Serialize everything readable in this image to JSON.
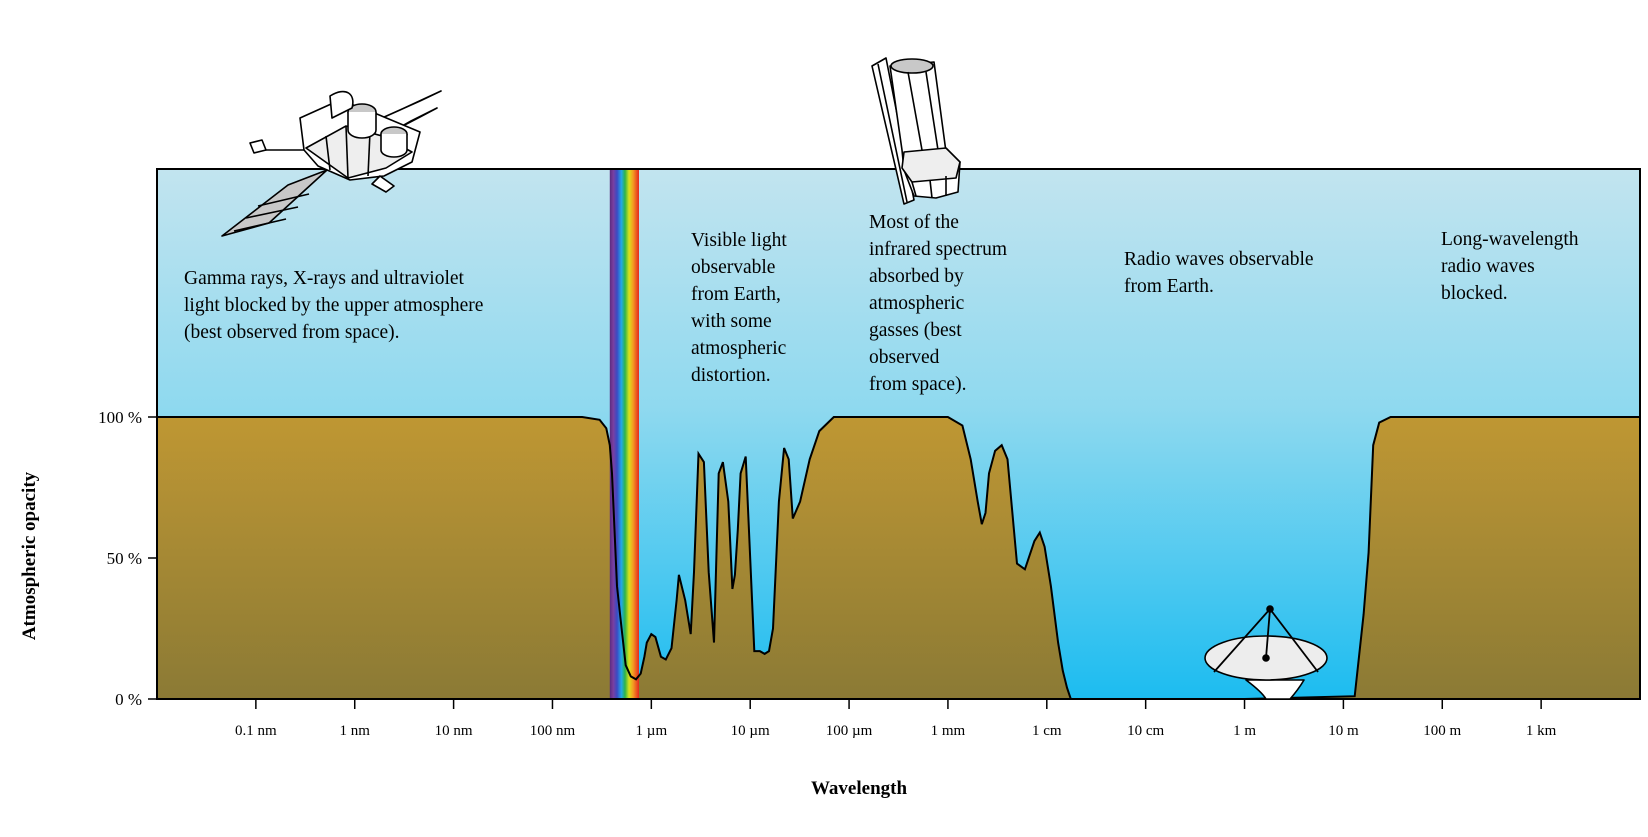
{
  "chart_data": {
    "type": "area",
    "title": "",
    "xlabel": "Wavelength",
    "ylabel": "Atmospheric opacity",
    "xscale": "log",
    "xlim": [
      "0.01 nm",
      "10 km"
    ],
    "ylim": [
      0,
      100
    ],
    "grid": false,
    "y_ticks": [
      {
        "value": 0,
        "label": "0 %"
      },
      {
        "value": 50,
        "label": "50 %"
      },
      {
        "value": 100,
        "label": "100 %"
      }
    ],
    "x_ticks": [
      {
        "value": 0.1,
        "label": "0.1 nm"
      },
      {
        "value": 1,
        "label": "1 nm"
      },
      {
        "value": 10,
        "label": "10 nm"
      },
      {
        "value": 100,
        "label": "100 nm"
      },
      {
        "value": 1000,
        "label": "1 µm"
      },
      {
        "value": 10000,
        "label": "10 µm"
      },
      {
        "value": 100000,
        "label": "100 µm"
      },
      {
        "value": 1000000,
        "label": "1 mm"
      },
      {
        "value": 10000000,
        "label": "1 cm"
      },
      {
        "value": 100000000,
        "label": "10 cm"
      },
      {
        "value": 1000000000,
        "label": "1 m"
      },
      {
        "value": 10000000000,
        "label": "10 m"
      },
      {
        "value": 100000000000,
        "label": "100 m"
      },
      {
        "value": 1000000000000,
        "label": "1 km"
      }
    ],
    "x_units": "nm",
    "series": [
      {
        "x": [
          0.01,
          1,
          100,
          200,
          300,
          350,
          380,
          400,
          450,
          500,
          550,
          620,
          700,
          780,
          850,
          900,
          1000,
          1100,
          1250,
          1400,
          1600,
          1800,
          1900,
          2200,
          2500,
          2700,
          3000,
          3400,
          3800,
          4300,
          4800,
          5300,
          6000,
          6600,
          7000,
          7500,
          8000,
          9000,
          11000,
          12500,
          14000,
          15500,
          17000,
          19500,
          22000,
          24500,
          27000,
          32000,
          40000,
          50000,
          70000,
          150000,
          400000,
          1000000,
          1400000,
          1700000,
          2000000,
          2200000,
          2400000,
          2600000,
          3000000,
          3500000,
          4000000,
          5000000,
          6000000,
          7500000,
          8500000,
          9500000,
          11000000,
          13000000,
          14500000,
          16000000,
          17500000,
          19000000,
          20000000,
          25000000,
          33000000,
          1000000000,
          13000000000,
          16000000000,
          18000000000,
          20000000000,
          23000000000,
          30000000000,
          100000000000,
          10000000000000
        ],
        "y": [
          100,
          100,
          100,
          100,
          99,
          96,
          90,
          80,
          40,
          25,
          12,
          8,
          7,
          9,
          15,
          20,
          23,
          22,
          15,
          14,
          18,
          35,
          44,
          35,
          23,
          45,
          87,
          84,
          45,
          20,
          80,
          84,
          70,
          39,
          44,
          60,
          80,
          86,
          17,
          17,
          16,
          17,
          25,
          70,
          89,
          85,
          64,
          70,
          85,
          95,
          100,
          100,
          100,
          100,
          97,
          85,
          70,
          62,
          66,
          80,
          88,
          90,
          85,
          48,
          46,
          56,
          59,
          54,
          40,
          20,
          10,
          4,
          0,
          0,
          0,
          0,
          0,
          0,
          1,
          30,
          52,
          90,
          98,
          100,
          100,
          100
        ]
      }
    ]
  },
  "annotations": [
    {
      "text": "Gamma rays, X-rays and ultraviolet\nlight blocked by the upper atmosphere\n(best observed from space)."
    },
    {
      "text": "Visible light\nobservable\nfrom Earth,\nwith some\natmospheric\ndistortion."
    },
    {
      "text": "Most of the\ninfrared spectrum\nabsorbed by\natmospheric\ngasses (best\nobserved\nfrom space)."
    },
    {
      "text": "Radio waves observable\nfrom Earth."
    },
    {
      "text": "Long-wavelength\nradio waves\nblocked."
    }
  ],
  "colors": {
    "sky_top": "#c2e4ef",
    "sky_mid": "#8fd9ef",
    "sky_bottom": "#1cbcf0",
    "ground_top": "#bf9733",
    "ground_bottom": "#8b7a35",
    "axis": "#000000"
  },
  "icons": [
    "satellite-icon",
    "space-telescope-icon",
    "radio-telescope-icon",
    "visible-spectrum-band"
  ]
}
